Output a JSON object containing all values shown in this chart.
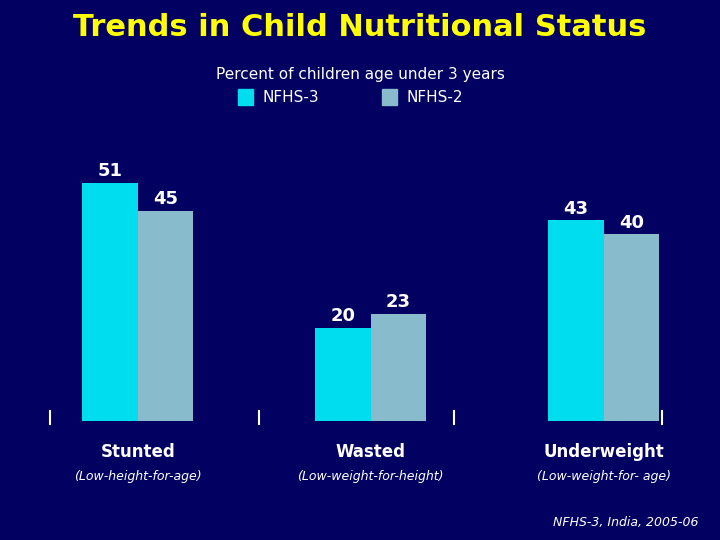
{
  "title": "Trends in Child Nutritional Status",
  "subtitle": "Percent of children age under 3 years",
  "background_color": "#020060",
  "title_color": "#FFFF00",
  "subtitle_color": "#FFFFFF",
  "legend_labels": [
    "NFHS-3",
    "NFHS-2"
  ],
  "legend_colors": [
    "#00DDEE",
    "#88BBCC"
  ],
  "categories": [
    "Stunted",
    "Wasted",
    "Underweight"
  ],
  "cat_subtitles": [
    "(Low-height-for-age)",
    "(Low-weight-for-height)",
    "(Low-weight-for- age)"
  ],
  "nfhs3_values": [
    51,
    20,
    43
  ],
  "nfhs2_values": [
    45,
    23,
    40
  ],
  "bar_color_nfhs3": "#00DDEE",
  "bar_color_nfhs2": "#88BBCC",
  "value_color": "#FFFFFF",
  "cat_label_color": "#FFFFFF",
  "footnote": "NFHS-3, India, 2005-06",
  "footnote_color": "#FFFFFF",
  "ylim": [
    0,
    60
  ],
  "bar_width": 0.38,
  "group_positions": [
    1.0,
    2.6,
    4.2
  ]
}
